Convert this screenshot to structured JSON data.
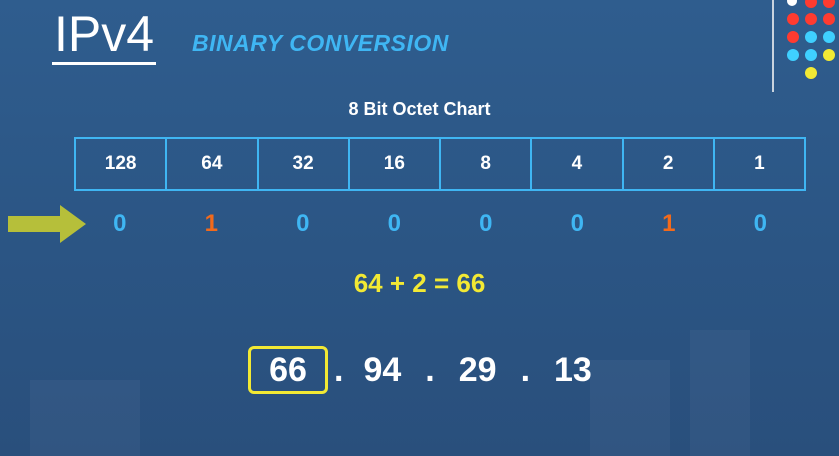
{
  "header": {
    "title": "IPv4",
    "subtitle": "BINARY CONVERSION"
  },
  "chart": {
    "title": "8 Bit Octet Chart",
    "place_values": [
      "128",
      "64",
      "32",
      "16",
      "8",
      "4",
      "2",
      "1"
    ],
    "bits": [
      "0",
      "1",
      "0",
      "0",
      "0",
      "0",
      "1",
      "0"
    ]
  },
  "equation": "64 + 2 = 66",
  "ip": {
    "octets": [
      "66",
      "94",
      "29",
      "13"
    ],
    "separator": "."
  },
  "colors": {
    "background": "#2b5584",
    "accent_blue": "#3fb6f3",
    "bit_off": "#3fb6f3",
    "bit_on": "#f26a1b",
    "highlight_yellow": "#f2e934",
    "arrow": "#b6bf3a"
  },
  "icons": {
    "pointer": "arrow-right-icon",
    "decoration": "dot-grid-icon"
  }
}
